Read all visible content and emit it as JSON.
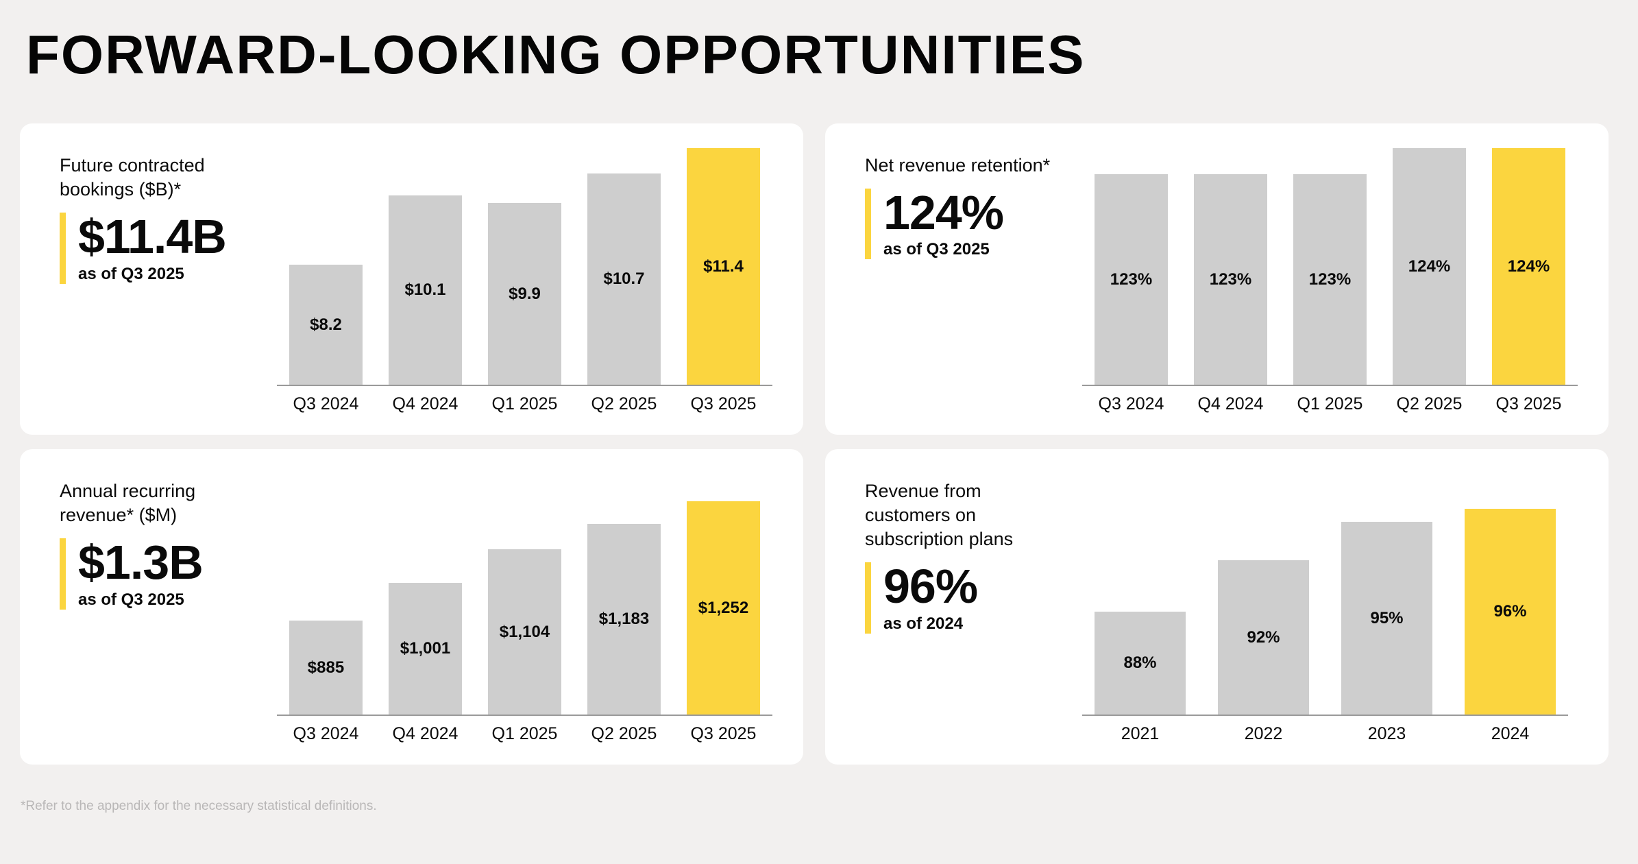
{
  "page": {
    "title": "FORWARD-LOOKING OPPORTUNITIES",
    "footnote": "*Refer to the appendix for the necessary statistical definitions.",
    "colors": {
      "background": "#f2f0ef",
      "card": "#ffffff",
      "bar": "#cecece",
      "highlight": "#fbd53f",
      "axis": "#9a9a9a"
    }
  },
  "chart_data": [
    {
      "id": "future-contracted-bookings",
      "type": "bar",
      "title": "Future contracted bookings ($B)*",
      "stat_value": "$11.4B",
      "stat_caption": "as of Q3 2025",
      "categories": [
        "Q3 2024",
        "Q4 2024",
        "Q1 2025",
        "Q2 2025",
        "Q3 2025"
      ],
      "values": [
        8.2,
        10.1,
        9.9,
        10.7,
        11.4
      ],
      "value_labels": [
        "$8.2",
        "$10.1",
        "$9.9",
        "$10.7",
        "$11.4"
      ],
      "highlight_index": 4,
      "ylim": [
        4.9,
        11.4
      ],
      "grid": false,
      "legend": "none"
    },
    {
      "id": "net-revenue-retention",
      "type": "bar",
      "title": "Net revenue retention*",
      "stat_value": "124%",
      "stat_caption": "as of Q3 2025",
      "categories": [
        "Q3 2024",
        "Q4 2024",
        "Q1 2025",
        "Q2 2025",
        "Q3 2025"
      ],
      "values": [
        123,
        123,
        123,
        124,
        124
      ],
      "value_labels": [
        "123%",
        "123%",
        "123%",
        "124%",
        "124%"
      ],
      "highlight_index": 4,
      "ylim": [
        115,
        124
      ],
      "grid": false,
      "legend": "none"
    },
    {
      "id": "annual-recurring-revenue",
      "type": "bar",
      "title": "Annual recurring revenue* ($M)",
      "stat_value": "$1.3B",
      "stat_caption": "as of Q3 2025",
      "categories": [
        "Q3 2024",
        "Q4 2024",
        "Q1 2025",
        "Q2 2025",
        "Q3 2025"
      ],
      "values": [
        885,
        1001,
        1104,
        1183,
        1252
      ],
      "value_labels": [
        "$885",
        "$1,001",
        "$1,104",
        "$1,183",
        "$1,252"
      ],
      "highlight_index": 4,
      "ylim": [
        596,
        1252
      ],
      "grid": false,
      "legend": "none"
    },
    {
      "id": "subscription-plan-revenue",
      "type": "bar",
      "title": "Revenue from customers on subscription plans",
      "stat_value": "96%",
      "stat_caption": "as of 2024",
      "categories": [
        "2021",
        "2022",
        "2023",
        "2024"
      ],
      "values": [
        88,
        92,
        95,
        96
      ],
      "value_labels": [
        "88%",
        "92%",
        "95%",
        "96%"
      ],
      "highlight_index": 3,
      "ylim": [
        80,
        96
      ],
      "grid": false,
      "legend": "none"
    }
  ]
}
